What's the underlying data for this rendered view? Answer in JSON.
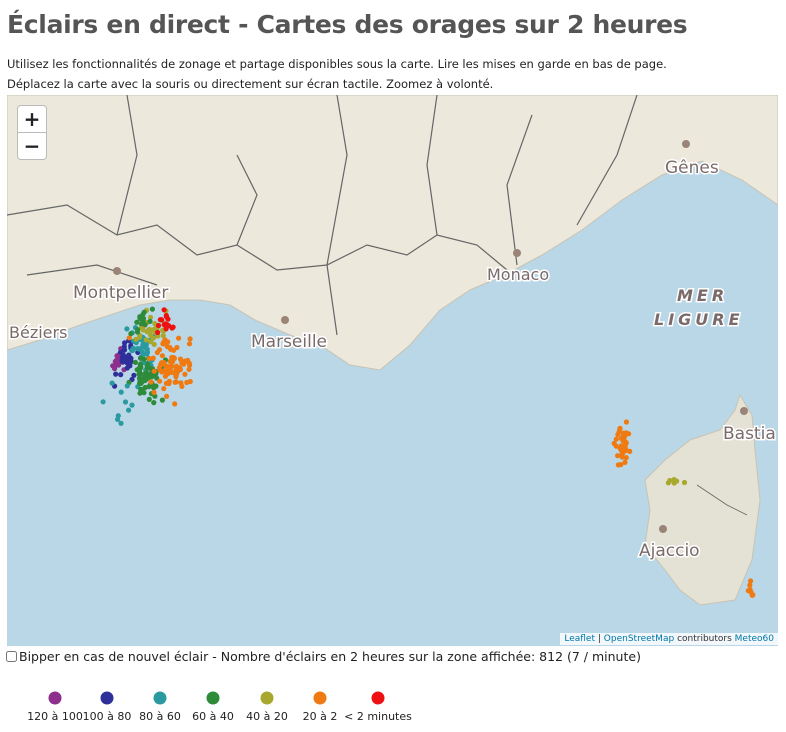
{
  "header": {
    "title": "Éclairs en direct - Cartes des orages sur 2 heures",
    "intro": [
      "Utilisez les fonctionnalités de zonage et partage disponibles sous la carte. Lire les mises en garde en bas de page.",
      "Déplacez la carte avec la souris ou directement sur écran tactile. Zoomez à volonté."
    ]
  },
  "map": {
    "zoom": [
      "+",
      "−"
    ],
    "places": [
      "Montpellier",
      "Béziers",
      "Marseille",
      "Monaco",
      "Gênes",
      "MER",
      "LIGURE",
      "Bastia",
      "Ajaccio"
    ],
    "attribution": [
      "Leaflet",
      "|",
      "OpenStreetMap",
      "contributors",
      "Meteo60"
    ]
  },
  "controls": {
    "beep_label": "Bipper en cas de nouvel éclair - Nombre d'éclairs en 2 heures sur la zone affichée: 812 (7 / minute)"
  },
  "legend": [
    {
      "label": "120 à 100",
      "color": "#8e2f8e"
    },
    {
      "label": "100 à 80",
      "color": "#2e2f9a"
    },
    {
      "label": "80 à 60",
      "color": "#2a9aa0"
    },
    {
      "label": "60 à 40",
      "color": "#2e8b3a"
    },
    {
      "label": "40 à 20",
      "color": "#a8a82e"
    },
    {
      "label": "20 à 2",
      "color": "#f07a12"
    },
    {
      "label": "< 2 minutes",
      "color": "#ee1111"
    }
  ]
}
